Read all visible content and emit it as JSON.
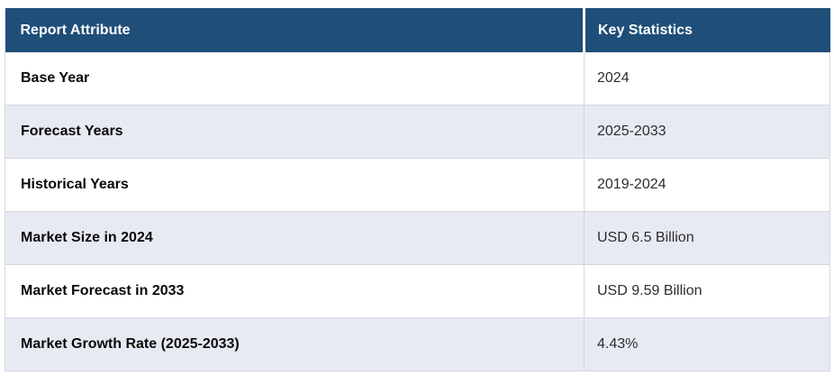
{
  "table": {
    "columns": [
      {
        "label": "Report Attribute"
      },
      {
        "label": "Key Statistics"
      }
    ],
    "rows": [
      {
        "attribute": "Base Year",
        "value": "2024"
      },
      {
        "attribute": "Forecast Years",
        "value": "2025-2033"
      },
      {
        "attribute": "Historical Years",
        "value": "2019-2024"
      },
      {
        "attribute": "Market Size in 2024",
        "value": "USD 6.5 Billion"
      },
      {
        "attribute": "Market Forecast in 2033",
        "value": "USD 9.59 Billion"
      },
      {
        "attribute": "Market Growth Rate (2025-2033)",
        "value": "4.43%"
      }
    ],
    "colors": {
      "header_bg": "#1f4e79",
      "header_text": "#ffffff",
      "row_stripe_bg": "#e8eaf3",
      "row_bg": "#ffffff",
      "grid_border": "#d5d6e0"
    }
  },
  "chart_data": {
    "type": "table",
    "title": "",
    "columns": [
      "Report Attribute",
      "Key Statistics"
    ],
    "rows": [
      [
        "Base Year",
        "2024"
      ],
      [
        "Forecast Years",
        "2025-2033"
      ],
      [
        "Historical Years",
        "2019-2024"
      ],
      [
        "Market Size in 2024",
        "USD 6.5 Billion"
      ],
      [
        "Market Forecast in 2033",
        "USD 9.59 Billion"
      ],
      [
        "Market Growth Rate (2025-2033)",
        "4.43%"
      ]
    ]
  }
}
